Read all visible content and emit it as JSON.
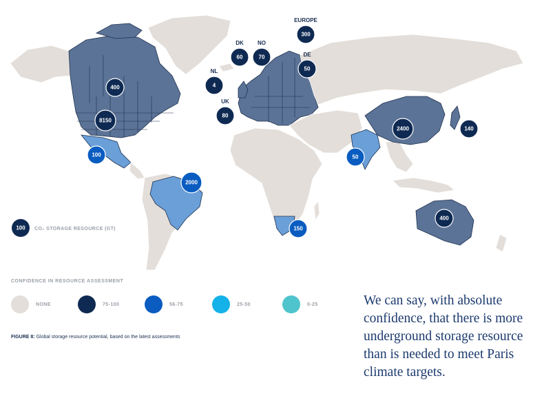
{
  "colors": {
    "none": "#e3ded9",
    "tier_75_100": "#0f2a52",
    "tier_56_75": "#0a5cc0",
    "tier_25_50": "#14b2e8",
    "tier_0_25": "#4fc4cc",
    "fill_high": "#5b7396",
    "fill_mid": "#6a9fd8"
  },
  "markers": [
    {
      "label": "",
      "value": "400"
    },
    {
      "label": "",
      "value": "8150"
    },
    {
      "label": "",
      "value": "100"
    },
    {
      "label": "",
      "value": "2000"
    },
    {
      "label": "UK",
      "value": "80"
    },
    {
      "label": "NL",
      "value": "4"
    },
    {
      "label": "DK",
      "value": "60"
    },
    {
      "label": "NO",
      "value": "70"
    },
    {
      "label": "EUROPE",
      "value": "300"
    },
    {
      "label": "DE",
      "value": "50"
    },
    {
      "label": "",
      "value": "150"
    },
    {
      "label": "",
      "value": "50"
    },
    {
      "label": "",
      "value": "2400"
    },
    {
      "label": "",
      "value": "140"
    },
    {
      "label": "",
      "value": "400"
    }
  ],
  "map_key": {
    "value": "100",
    "label": "CO₂ STORAGE RESOURCE (GT)"
  },
  "legend": {
    "title": "CONFIDENCE IN RESOURCE ASSESSMENT",
    "items": [
      {
        "label": "NONE",
        "color": "#e3ded9"
      },
      {
        "label": "75-100",
        "color": "#0f2a52"
      },
      {
        "label": "56-75",
        "color": "#0a5cc0"
      },
      {
        "label": "25-50",
        "color": "#14b2e8"
      },
      {
        "label": "0-25",
        "color": "#4fc4cc"
      }
    ]
  },
  "caption": {
    "prefix": "FIGURE 8:",
    "text": " Global storage resource potential, based on the latest assessments"
  },
  "quote": "We can say, with absolute confidence, that there is more underground storage resource than is needed to meet Paris climate targets."
}
